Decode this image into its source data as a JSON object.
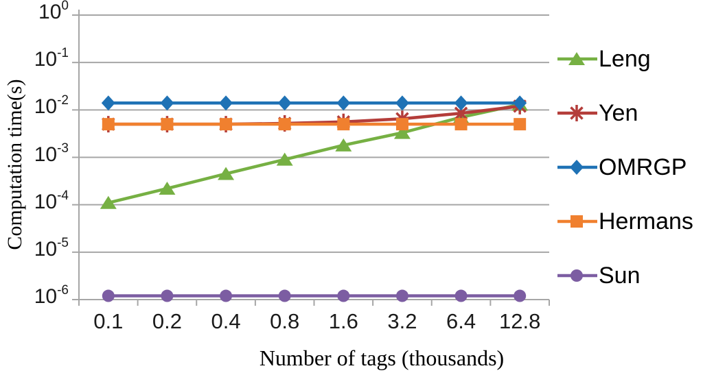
{
  "chart_data": {
    "type": "line",
    "title": "",
    "xlabel": "Number of tags (thousands)",
    "ylabel": "Computation time(s)",
    "x_scale": "category",
    "y_scale": "log",
    "ylim": [
      1e-06,
      1
    ],
    "grid": "horizontal",
    "legend_position": "right",
    "axis_color": "#A6A6A6",
    "y_tick_base": "10",
    "y_ticks_exponents": [
      "0",
      "-1",
      "-2",
      "-3",
      "-4",
      "-5",
      "-6"
    ],
    "categories": [
      "0.1",
      "0.2",
      "0.4",
      "0.8",
      "1.6",
      "3.2",
      "6.4",
      "12.8"
    ],
    "series": [
      {
        "name": "Leng",
        "color": "#76B043",
        "marker": "triangle",
        "values": [
          0.00011,
          0.00022,
          0.00045,
          0.0009,
          0.0018,
          0.0033,
          0.007,
          0.013
        ]
      },
      {
        "name": "Yen",
        "color": "#B43D3A",
        "marker": "asterisk",
        "values": [
          0.005,
          0.005,
          0.005,
          0.0052,
          0.0056,
          0.0065,
          0.0085,
          0.012
        ]
      },
      {
        "name": "OMRGP",
        "color": "#1F72B5",
        "marker": "diamond",
        "values": [
          0.014,
          0.014,
          0.014,
          0.014,
          0.014,
          0.014,
          0.014,
          0.014
        ]
      },
      {
        "name": "Hermans",
        "color": "#F0802F",
        "marker": "square",
        "values": [
          0.005,
          0.005,
          0.005,
          0.005,
          0.005,
          0.005,
          0.005,
          0.005
        ]
      },
      {
        "name": "Sun",
        "color": "#7C5DA2",
        "marker": "circle",
        "values": [
          1.2e-06,
          1.2e-06,
          1.2e-06,
          1.2e-06,
          1.2e-06,
          1.2e-06,
          1.2e-06,
          1.2e-06
        ]
      }
    ]
  }
}
